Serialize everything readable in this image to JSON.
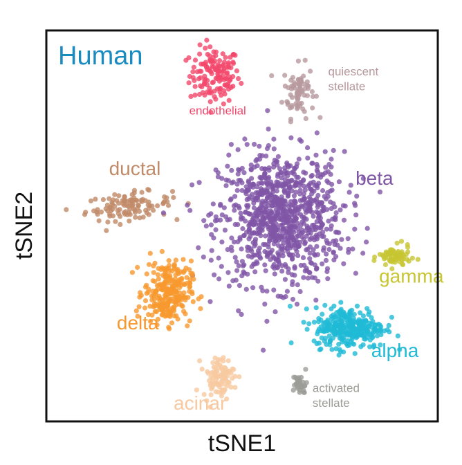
{
  "chart_data": {
    "type": "scatter",
    "title": "Human",
    "xlabel": "tSNE1",
    "ylabel": "tSNE2",
    "grid": false,
    "ticks": false,
    "xlim": [
      0,
      100
    ],
    "ylim": [
      0,
      100
    ],
    "colors": {
      "title": "#1a8bbf",
      "frame": "#111111",
      "axis_label": "#111111"
    },
    "clusters": [
      {
        "name": "endothelial",
        "label_lines": [
          "endothelial"
        ],
        "color": "#f2476c",
        "cx": 43,
        "cy": 88.5,
        "sx": 3.2,
        "sy": 3.6,
        "n": 140,
        "lx": 36.5,
        "ly": 78.5,
        "size": 17
      },
      {
        "name": "quiescent stellate",
        "label_lines": [
          "quiescent",
          "stellate"
        ],
        "color": "#b7989d",
        "cx": 64.5,
        "cy": 84.5,
        "sx": 2.0,
        "sy": 3.4,
        "n": 75,
        "lx": 72,
        "ly": 88.5,
        "size": 17
      },
      {
        "name": "ductal",
        "label_lines": [
          "ductal"
        ],
        "color": "#c08a68",
        "cx": 21,
        "cy": 55,
        "sx": 5.5,
        "sy": 1.7,
        "n": 110,
        "lx": 16,
        "ly": 63,
        "size": 28
      },
      {
        "name": "beta",
        "label_lines": [
          "beta"
        ],
        "color": "#8055a6",
        "cx": 60,
        "cy": 52,
        "sx": 8.0,
        "sy": 8.0,
        "n": 950,
        "lx": 79,
        "ly": 60.5,
        "size": 28
      },
      {
        "name": "gamma",
        "label_lines": [
          "gamma"
        ],
        "color": "#c7c632",
        "cx": 89,
        "cy": 42,
        "sx": 2.0,
        "sy": 1.4,
        "n": 75,
        "lx": 85,
        "ly": 35.5,
        "size": 28
      },
      {
        "name": "delta",
        "label_lines": [
          "delta"
        ],
        "color": "#f7982e",
        "cx": 31,
        "cy": 33,
        "sx": 3.0,
        "sy": 4.0,
        "n": 260,
        "lx": 18,
        "ly": 23.5,
        "size": 28
      },
      {
        "name": "alpha",
        "label_lines": [
          "alpha"
        ],
        "color": "#1fbad6",
        "cx": 77.5,
        "cy": 24,
        "sx": 4.5,
        "sy": 2.6,
        "n": 300,
        "lx": 83,
        "ly": 16.5,
        "size": 28
      },
      {
        "name": "acinar",
        "label_lines": [
          "acinar"
        ],
        "color": "#f8c9a0",
        "cx": 44,
        "cy": 11.5,
        "sx": 2.0,
        "sy": 2.6,
        "n": 95,
        "lx": 32.5,
        "ly": 3,
        "size": 28
      },
      {
        "name": "activated stellate",
        "label_lines": [
          "activated",
          "stellate"
        ],
        "color": "#9c9c97",
        "cx": 64.8,
        "cy": 9.5,
        "sx": 0.9,
        "sy": 1.4,
        "n": 30,
        "lx": 68,
        "ly": 7.5,
        "size": 17
      }
    ]
  }
}
